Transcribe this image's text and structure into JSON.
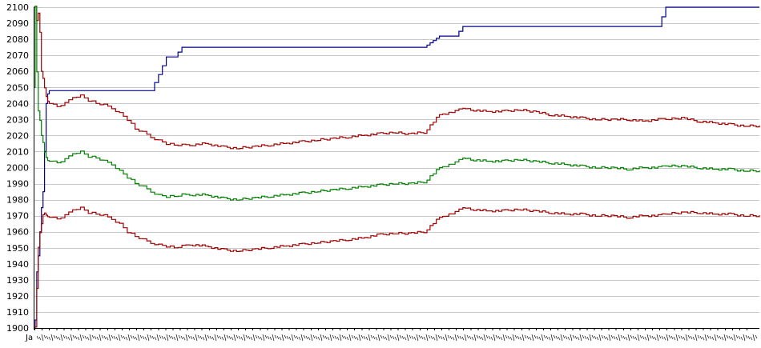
{
  "chart_data": {
    "type": "line",
    "title": "",
    "xlabel": "",
    "ylabel": "",
    "ylim": [
      1900,
      2100
    ],
    "yticks": [
      1900,
      1910,
      1920,
      1930,
      1940,
      1950,
      1960,
      1970,
      1980,
      1990,
      2000,
      2010,
      2020,
      2030,
      2040,
      2050,
      2060,
      2070,
      2080,
      2090,
      2100
    ],
    "grid": true,
    "legend": "none",
    "x_tick_first_label": "Ja",
    "x_tick_count": 100,
    "x": [
      0,
      2,
      4,
      6,
      8,
      10,
      12,
      14,
      16,
      18,
      20,
      30,
      40,
      50,
      60,
      70,
      80,
      90,
      100,
      110,
      120,
      130,
      140,
      150,
      160,
      170,
      180,
      190,
      200,
      220,
      240,
      260,
      280,
      300,
      320,
      340,
      360,
      380,
      400,
      420,
      440,
      460,
      480,
      500,
      520,
      540,
      550,
      553,
      560,
      580,
      600,
      620,
      640,
      660,
      680,
      700,
      720,
      740,
      760,
      780,
      800,
      810,
      830,
      850,
      870,
      890,
      910,
      930
    ],
    "series": [
      {
        "color": "#00008b",
        "values": [
          1900,
          1905,
          1935,
          1945,
          1960,
          1975,
          1985,
          2010,
          2040,
          2046,
          2048,
          2048,
          2048,
          2048,
          2048,
          2048,
          2048,
          2048,
          2048,
          2048,
          2048,
          2048,
          2048,
          2048,
          2058,
          2069,
          2069,
          2075,
          2075,
          2075,
          2075,
          2075,
          2075,
          2075,
          2075,
          2075,
          2075,
          2075,
          2075,
          2075,
          2075,
          2075,
          2075,
          2075,
          2082,
          2082,
          2088,
          2088,
          2088,
          2088,
          2088,
          2088,
          2088,
          2088,
          2088,
          2088,
          2088,
          2088,
          2088,
          2088,
          2088,
          2100,
          2100,
          2100,
          2100,
          2100,
          2100,
          2100
        ]
      },
      {
        "color": "#a00000",
        "values": [
          2100,
          2100,
          2092,
          2096,
          2085,
          2060,
          2055,
          2050,
          2044,
          2042,
          2040,
          2038,
          2040,
          2044,
          2045,
          2042,
          2040,
          2039,
          2037,
          2034,
          2030,
          2024,
          2022,
          2019,
          2017,
          2015,
          2014,
          2014,
          2014,
          2015,
          2013,
          2012,
          2013,
          2014,
          2015,
          2016,
          2017,
          2018,
          2019,
          2020,
          2021,
          2022,
          2021,
          2022,
          2033,
          2035,
          2037,
          2037,
          2036,
          2035,
          2035,
          2036,
          2035,
          2033,
          2032,
          2031,
          2030,
          2030,
          2030,
          2029,
          2030,
          2030,
          2031,
          2029,
          2028,
          2027,
          2026,
          2026
        ]
      },
      {
        "color": "#008000",
        "values": [
          2050,
          2100,
          2060,
          2035,
          2030,
          2020,
          2015,
          2010,
          2006,
          2005,
          2004,
          2003,
          2005,
          2009,
          2010,
          2007,
          2006,
          2004,
          2002,
          1998,
          1994,
          1990,
          1988,
          1985,
          1983,
          1982,
          1982,
          1983,
          1983,
          1983,
          1981,
          1980,
          1981,
          1982,
          1983,
          1984,
          1985,
          1986,
          1987,
          1988,
          1989,
          1990,
          1990,
          1991,
          2000,
          2003,
          2006,
          2006,
          2005,
          2004,
          2004,
          2005,
          2004,
          2003,
          2002,
          2001,
          2000,
          2000,
          1999,
          2000,
          2000,
          2001,
          2001,
          2000,
          1999,
          1999,
          1998,
          1998
        ]
      },
      {
        "color": "#a00000",
        "values": [
          1900,
          1900,
          1925,
          1950,
          1960,
          1965,
          1970,
          1972,
          1970,
          1970,
          1969,
          1968,
          1970,
          1974,
          1975,
          1972,
          1971,
          1970,
          1968,
          1965,
          1960,
          1957,
          1955,
          1953,
          1952,
          1951,
          1950,
          1951,
          1952,
          1951,
          1949,
          1948,
          1949,
          1950,
          1951,
          1952,
          1953,
          1954,
          1955,
          1956,
          1958,
          1959,
          1959,
          1960,
          1969,
          1972,
          1975,
          1975,
          1974,
          1973,
          1973,
          1974,
          1973,
          1972,
          1971,
          1971,
          1970,
          1970,
          1969,
          1970,
          1970,
          1971,
          1972,
          1972,
          1971,
          1971,
          1970,
          1970
        ]
      }
    ]
  }
}
